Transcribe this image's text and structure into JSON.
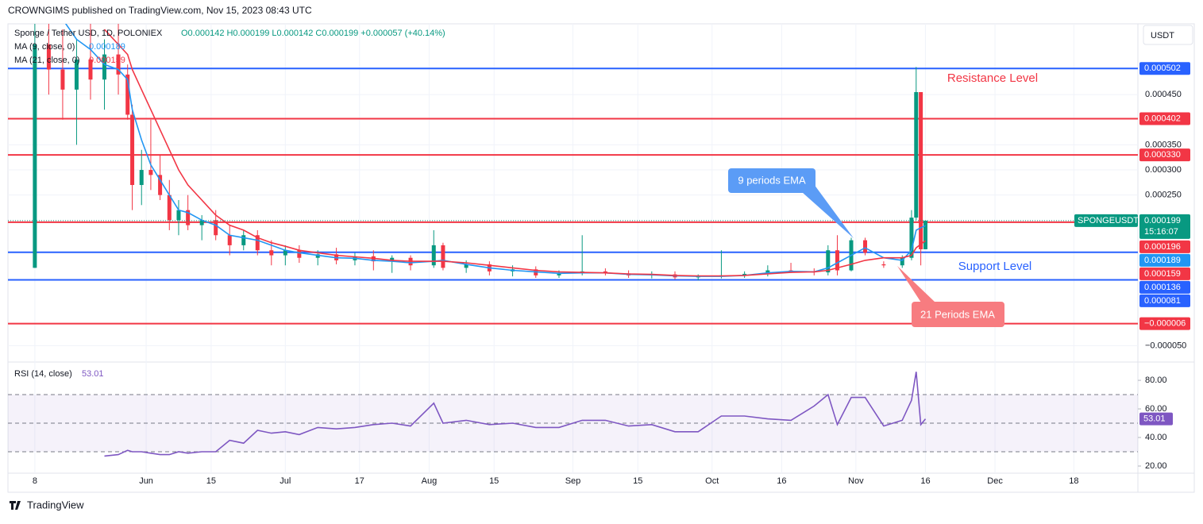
{
  "header": "CROWNGIMS published on TradingView.com, Nov 15, 2023 08:43 UTC",
  "footer": "TradingView",
  "chart_data": {
    "type": "candlestick",
    "title": "Sponge / Tether USD, 1D, POLONIEX",
    "ohlc_text": "O0.000142 H0.000199 L0.000142 C0.000199 +0.000057 (+40.14%)",
    "currency": "USDT",
    "symbol": "SPONGEUSDT",
    "countdown": "15:16:07",
    "close_label": "0.000199",
    "up_color": "#089981",
    "down_color": "#f23645",
    "x": [
      7,
      10,
      13,
      16,
      19,
      22,
      25,
      27,
      28,
      30,
      32,
      34,
      36,
      38,
      40,
      43,
      46,
      49,
      52,
      55,
      58,
      61,
      64,
      68,
      72,
      76,
      80,
      84,
      88,
      93,
      95,
      100,
      105,
      110,
      115,
      120,
      125,
      130,
      135,
      140,
      145,
      150,
      155,
      160,
      165,
      170,
      175,
      178,
      180,
      183,
      186,
      190,
      194,
      196,
      197,
      198,
      199
    ],
    "open": [
      0.000105,
      0.00055,
      0.0005,
      0.00046,
      0.00052,
      0.00048,
      0.00053,
      0.00049,
      0.00041,
      0.00027,
      0.0003,
      0.00029,
      0.00025,
      0.0002,
      0.00022,
      0.00019,
      0.0002,
      0.00017,
      0.00015,
      0.00017,
      0.00014,
      0.00013,
      0.00014,
      0.000125,
      0.000132,
      0.00012,
      0.000128,
      0.000118,
      0.000125,
      0.00011,
      0.00015,
      0.000105,
      0.000112,
      9.8e-05,
      0.000102,
      9e-05,
      9.5e-05,
      9.8e-05,
      9.4e-05,
      9e-05,
      9.2e-05,
      8.6e-05,
      8.8e-05,
      9e-05,
      9.3e-05,
      0.0001,
      9.8e-05,
      9.6e-05,
      0.00014,
      0.0001,
      0.00016,
      0.000112,
      0.00011,
      0.000125,
      0.000205,
      0.000455,
      0.000142
    ],
    "high": [
      0.00062,
      0.00062,
      0.00058,
      0.00056,
      0.00061,
      0.00056,
      0.0006,
      0.00051,
      0.00043,
      0.00034,
      0.0004,
      0.00033,
      0.00028,
      0.00024,
      0.00025,
      0.00021,
      0.00022,
      0.00019,
      0.00018,
      0.00018,
      0.00016,
      0.00015,
      0.00015,
      0.00014,
      0.000145,
      0.000135,
      0.00014,
      0.00013,
      0.00013,
      0.00018,
      0.000155,
      0.00012,
      0.000118,
      0.00011,
      0.000108,
      0.0001,
      0.00017,
      0.000104,
      0.0001,
      9.8e-05,
      9.8e-05,
      9.2e-05,
      0.00014,
      9.8e-05,
      0.00011,
      0.000115,
      0.000104,
      0.00015,
      0.00017,
      0.000165,
      0.000165,
      0.000118,
      0.00013,
      0.00022,
      0.000505,
      0.000455,
      0.000199
    ],
    "low": [
      0.000105,
      0.00045,
      0.0004,
      0.00035,
      0.00044,
      0.00042,
      0.00045,
      0.0004,
      0.00022,
      0.00023,
      0.00026,
      0.00024,
      0.00018,
      0.00017,
      0.00018,
      0.00016,
      0.00016,
      0.00013,
      0.00014,
      0.00013,
      0.00011,
      0.00011,
      0.000115,
      0.00011,
      0.000112,
      0.00011,
      0.0001,
      9.5e-05,
      0.0001,
      0.000105,
      0.0001,
      9.5e-05,
      9e-05,
      8.8e-05,
      8.5e-05,
      8.5e-05,
      9e-05,
      9e-05,
      8.5e-05,
      8.4e-05,
      8.2e-05,
      8e-05,
      8.4e-05,
      8.5e-05,
      8.8e-05,
      9.5e-05,
      9e-05,
      9e-05,
      9e-05,
      9.8e-05,
      0.00013,
      0.000105,
      0.000105,
      0.00012,
      0.0002,
      0.00011,
      0.000142
    ],
    "close": [
      0.00055,
      0.0005,
      0.00046,
      0.00052,
      0.00048,
      0.00053,
      0.00049,
      0.00041,
      0.00027,
      0.0003,
      0.00029,
      0.00025,
      0.0002,
      0.00022,
      0.00019,
      0.0002,
      0.00017,
      0.00015,
      0.00017,
      0.00014,
      0.00013,
      0.00014,
      0.000125,
      0.000132,
      0.00012,
      0.000128,
      0.000118,
      0.000125,
      0.00011,
      0.00015,
      0.000105,
      0.000112,
      9.8e-05,
      0.000102,
      9e-05,
      9.5e-05,
      9.8e-05,
      9.4e-05,
      9e-05,
      9.2e-05,
      8.6e-05,
      8.8e-05,
      9e-05,
      9.3e-05,
      0.0001,
      9.8e-05,
      9.6e-05,
      0.00014,
      0.0001,
      0.00016,
      0.000135,
      0.00011,
      0.000125,
      0.000205,
      0.000455,
      0.000142,
      0.000199
    ],
    "series": [
      {
        "name": "MA (9, close, 0)",
        "value_label": "0.000189",
        "color": "#2196f3",
        "values": [
          null,
          null,
          0.0006,
          0.00056,
          0.00054,
          0.00051,
          0.0005,
          0.00048,
          0.00042,
          0.00036,
          0.00031,
          0.00028,
          0.00025,
          0.00022,
          0.000215,
          0.0002,
          0.00019,
          0.00017,
          0.000165,
          0.00016,
          0.00015,
          0.00014,
          0.000135,
          0.00013,
          0.000125,
          0.000124,
          0.00012,
          0.000118,
          0.000115,
          0.000118,
          0.00012,
          0.000112,
          0.000105,
          0.0001,
          9.7e-05,
          9.4e-05,
          9.5e-05,
          9.5e-05,
          9.2e-05,
          9.1e-05,
          8.9e-05,
          8.8e-05,
          8.8e-05,
          9e-05,
          9.5e-05,
          9.8e-05,
          9.7e-05,
          0.000105,
          0.000115,
          0.00013,
          0.000145,
          0.000125,
          0.00012,
          0.00014,
          0.00018,
          0.000185,
          0.000189
        ]
      },
      {
        "name": "MA (21, close, 0)",
        "value_label": "0.000159",
        "color": "#f23645",
        "values": [
          null,
          null,
          null,
          null,
          null,
          0.00058,
          0.00055,
          0.00053,
          0.0005,
          0.00046,
          0.00042,
          0.00038,
          0.00034,
          0.0003,
          0.00027,
          0.00024,
          0.00021,
          0.00019,
          0.00018,
          0.000165,
          0.000155,
          0.000148,
          0.00014,
          0.000135,
          0.00013,
          0.000127,
          0.000124,
          0.00012,
          0.000118,
          0.000118,
          0.000118,
          0.000115,
          0.00011,
          0.000105,
          0.0001,
          9.7e-05,
          9.6e-05,
          9.5e-05,
          9.3e-05,
          9.2e-05,
          9e-05,
          8.9e-05,
          8.9e-05,
          9e-05,
          9.3e-05,
          9.6e-05,
          9.7e-05,
          0.0001,
          0.000105,
          0.000112,
          0.00012,
          0.000125,
          0.000125,
          0.00013,
          0.000145,
          0.000152,
          0.000159
        ]
      }
    ],
    "levels": [
      {
        "value": 0.000502,
        "label": "0.000502",
        "color": "#2962ff"
      },
      {
        "value": 0.000402,
        "label": "0.000402",
        "color": "#f23645"
      },
      {
        "value": 0.00033,
        "label": "0.000330",
        "color": "#f23645"
      },
      {
        "value": 0.000196,
        "label": "0.000196",
        "color": "#f23645"
      },
      {
        "value": 0.000136,
        "label": "0.000136",
        "color": "#2962ff"
      },
      {
        "value": 8.1e-05,
        "label": "0.000081",
        "color": "#2962ff"
      },
      {
        "value": -6e-06,
        "label": "−0.000006",
        "color": "#f23645"
      }
    ],
    "annotations": [
      "Resistance Level",
      "Support Level",
      "9 periods EMA",
      "21 Periods EMA"
    ],
    "xlim": [
      1.2,
      244.8
    ],
    "xticks": [
      {
        "value": 7,
        "label": "8"
      },
      {
        "value": 31,
        "label": "Jun"
      },
      {
        "value": 45,
        "label": "15"
      },
      {
        "value": 61,
        "label": "Jul"
      },
      {
        "value": 77,
        "label": "17"
      },
      {
        "value": 92,
        "label": "Aug"
      },
      {
        "value": 106,
        "label": "15"
      },
      {
        "value": 123,
        "label": "Sep"
      },
      {
        "value": 137,
        "label": "15"
      },
      {
        "value": 153,
        "label": "Oct"
      },
      {
        "value": 168,
        "label": "16"
      },
      {
        "value": 184,
        "label": "Nov"
      },
      {
        "value": 199,
        "label": "16"
      },
      {
        "value": 214,
        "label": "Dec"
      },
      {
        "value": 231,
        "label": "18"
      }
    ],
    "ylim": [
      -8.1e-05,
      0.000591
    ],
    "yticks": [
      {
        "value": 0.00045,
        "label": "0.000450"
      },
      {
        "value": 0.00035,
        "label": "0.000350"
      },
      {
        "value": 0.0003,
        "label": "0.000300"
      },
      {
        "value": 0.00025,
        "label": "0.000250"
      },
      {
        "value": -5e-05,
        "label": "−0.000050"
      }
    ],
    "rsi": {
      "name": "RSI (14, close)",
      "value_label": "53.01",
      "color": "#7e57c2",
      "values": [
        null,
        null,
        null,
        null,
        null,
        27,
        28,
        31,
        30,
        30,
        29,
        28,
        28,
        30,
        29,
        30,
        30,
        38,
        36,
        45,
        43,
        44,
        42,
        47,
        46,
        47,
        49,
        50,
        48,
        64,
        50,
        52,
        49,
        50,
        47,
        47,
        52,
        52,
        48,
        49,
        44,
        44,
        55,
        55,
        53,
        52,
        62,
        70,
        49,
        68,
        68,
        48,
        52,
        66,
        86,
        49,
        53.01
      ],
      "ylim": [
        15,
        91.7
      ],
      "yticks": [
        {
          "value": 20,
          "label": "20.00"
        },
        {
          "value": 40,
          "label": "40.00"
        },
        {
          "value": 60,
          "label": "60.00"
        },
        {
          "value": 80,
          "label": "80.00"
        }
      ],
      "bands": [
        70,
        50,
        30
      ]
    }
  }
}
